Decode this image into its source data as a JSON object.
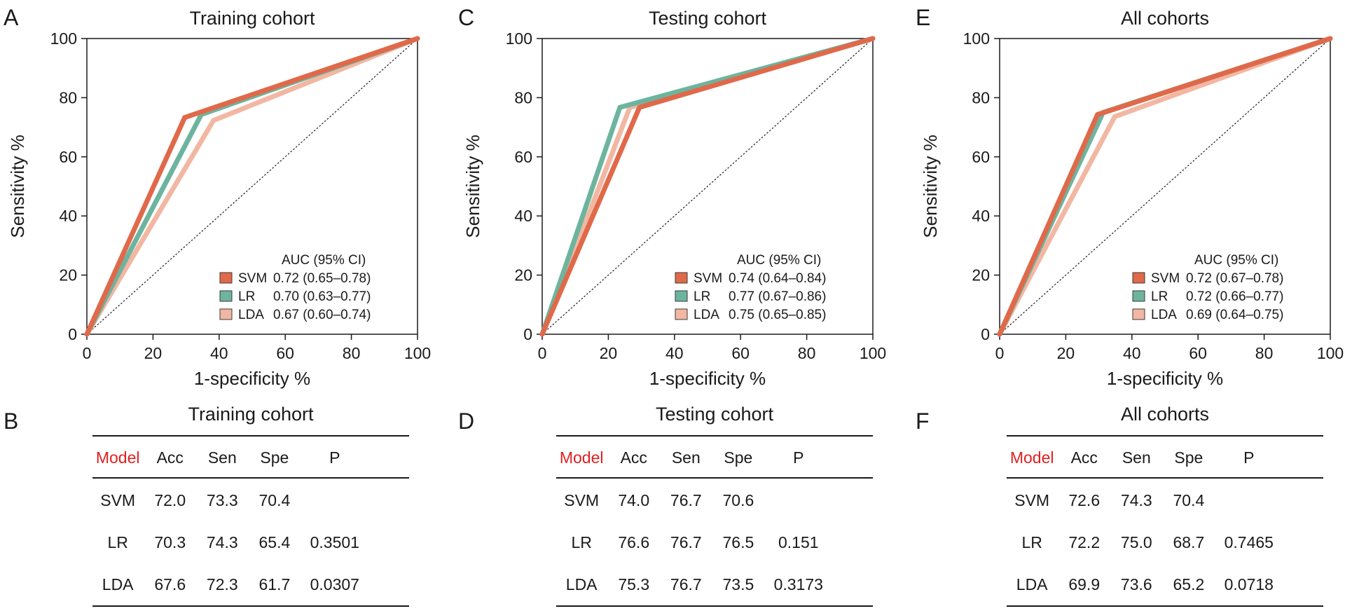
{
  "colors": {
    "SVM": "#e0694a",
    "LR": "#6db49e",
    "LDA": "#f2b7a2",
    "axis": "#1a1a1a",
    "model_header": "#e02020"
  },
  "chart_data": [
    {
      "type": "line",
      "panel_letter": "A",
      "title": "Training cohort",
      "xlabel": "1-specificity %",
      "ylabel": "Sensitivity %",
      "xlim": [
        0,
        100
      ],
      "ylim": [
        0,
        100
      ],
      "xticks": [
        "0",
        "20",
        "40",
        "60",
        "80",
        "100"
      ],
      "yticks": [
        "0",
        "20",
        "40",
        "60",
        "80",
        "100"
      ],
      "legend_title": "AUC (95% CI)",
      "legend_position": "bottom-right",
      "diagonal_reference": true,
      "series": [
        {
          "name": "SVM",
          "auc": "0.72 (0.65–0.78)",
          "x": [
            0,
            29.6,
            100
          ],
          "y": [
            0,
            73.3,
            100
          ]
        },
        {
          "name": "LR",
          "auc": "0.70 (0.63–0.77)",
          "x": [
            0,
            34.6,
            100
          ],
          "y": [
            0,
            74.3,
            100
          ]
        },
        {
          "name": "LDA",
          "auc": "0.67 (0.60–0.74)",
          "x": [
            0,
            38.3,
            100
          ],
          "y": [
            0,
            72.3,
            100
          ]
        }
      ]
    },
    {
      "type": "line",
      "panel_letter": "C",
      "title": "Testing cohort",
      "xlabel": "1-specificity %",
      "ylabel": "Sensitivity %",
      "xlim": [
        0,
        100
      ],
      "ylim": [
        0,
        100
      ],
      "xticks": [
        "0",
        "20",
        "40",
        "60",
        "80",
        "100"
      ],
      "yticks": [
        "0",
        "20",
        "40",
        "60",
        "80",
        "100"
      ],
      "legend_title": "AUC (95% CI)",
      "legend_position": "bottom-right",
      "diagonal_reference": true,
      "series": [
        {
          "name": "SVM",
          "auc": "0.74 (0.64–0.84)",
          "x": [
            0,
            29.4,
            100
          ],
          "y": [
            0,
            76.7,
            100
          ]
        },
        {
          "name": "LR",
          "auc": "0.77 (0.67–0.86)",
          "x": [
            0,
            23.5,
            100
          ],
          "y": [
            0,
            76.7,
            100
          ]
        },
        {
          "name": "LDA",
          "auc": "0.75 (0.65–0.85)",
          "x": [
            0,
            26.5,
            100
          ],
          "y": [
            0,
            76.7,
            100
          ]
        }
      ]
    },
    {
      "type": "line",
      "panel_letter": "E",
      "title": "All cohorts",
      "xlabel": "1-specificity %",
      "ylabel": "Sensitivity %",
      "xlim": [
        0,
        100
      ],
      "ylim": [
        0,
        100
      ],
      "xticks": [
        "0",
        "20",
        "40",
        "60",
        "80",
        "100"
      ],
      "yticks": [
        "0",
        "20",
        "40",
        "60",
        "80",
        "100"
      ],
      "legend_title": "AUC (95% CI)",
      "legend_position": "bottom-right",
      "diagonal_reference": true,
      "series": [
        {
          "name": "SVM",
          "auc": "0.72 (0.67–0.78)",
          "x": [
            0,
            29.6,
            100
          ],
          "y": [
            0,
            74.3,
            100
          ]
        },
        {
          "name": "LR",
          "auc": "0.72 (0.66–0.77)",
          "x": [
            0,
            31.3,
            100
          ],
          "y": [
            0,
            75.0,
            100
          ]
        },
        {
          "name": "LDA",
          "auc": "0.69 (0.64–0.75)",
          "x": [
            0,
            34.8,
            100
          ],
          "y": [
            0,
            73.6,
            100
          ]
        }
      ]
    },
    {
      "type": "table",
      "panel_letter": "B",
      "title": "Training cohort",
      "columns": [
        "Model",
        "Acc",
        "Sen",
        "Spe",
        "P"
      ],
      "rows": [
        [
          "SVM",
          "72.0",
          "73.3",
          "70.4",
          ""
        ],
        [
          "LR",
          "70.3",
          "74.3",
          "65.4",
          "0.3501"
        ],
        [
          "LDA",
          "67.6",
          "72.3",
          "61.7",
          "0.0307"
        ]
      ]
    },
    {
      "type": "table",
      "panel_letter": "D",
      "title": "Testing cohort",
      "columns": [
        "Model",
        "Acc",
        "Sen",
        "Spe",
        "P"
      ],
      "rows": [
        [
          "SVM",
          "74.0",
          "76.7",
          "70.6",
          ""
        ],
        [
          "LR",
          "76.6",
          "76.7",
          "76.5",
          "0.151"
        ],
        [
          "LDA",
          "75.3",
          "76.7",
          "73.5",
          "0.3173"
        ]
      ]
    },
    {
      "type": "table",
      "panel_letter": "F",
      "title": "All cohorts",
      "columns": [
        "Model",
        "Acc",
        "Sen",
        "Spe",
        "P"
      ],
      "rows": [
        [
          "SVM",
          "72.6",
          "74.3",
          "70.4",
          ""
        ],
        [
          "LR",
          "72.2",
          "75.0",
          "68.7",
          "0.7465"
        ],
        [
          "LDA",
          "69.9",
          "73.6",
          "65.2",
          "0.0718"
        ]
      ]
    }
  ]
}
